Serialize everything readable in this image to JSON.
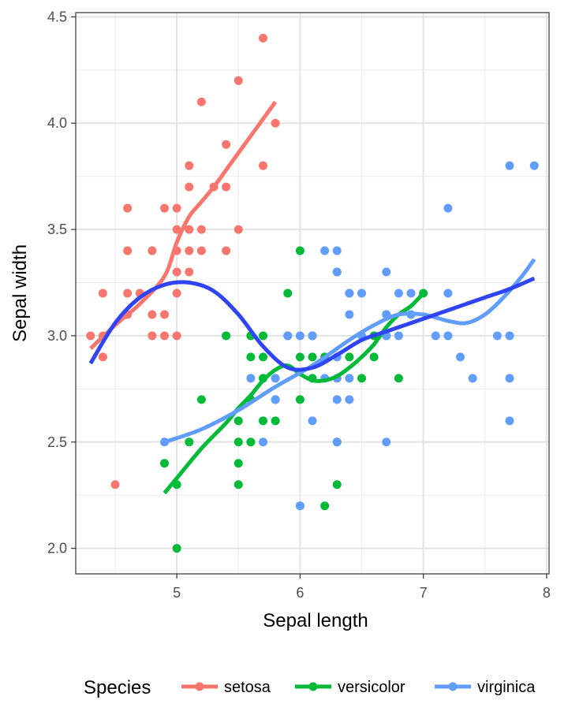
{
  "chart_data": {
    "type": "scatter",
    "title": "",
    "xlabel": "Sepal length",
    "ylabel": "Sepal width",
    "xlim": [
      4.18,
      8.02
    ],
    "ylim": [
      1.88,
      4.52
    ],
    "x_ticks": [
      5,
      6,
      7,
      8
    ],
    "y_ticks": [
      2.0,
      2.5,
      3.0,
      3.5,
      4.0,
      4.5
    ],
    "x_tick_labels": [
      "5",
      "6",
      "7",
      "8"
    ],
    "y_tick_labels": [
      "2.0",
      "2.5",
      "3.0",
      "3.5",
      "4.0",
      "4.5"
    ],
    "grid": true,
    "legend": {
      "title": "Species",
      "position": "bottom"
    },
    "series": [
      {
        "name": "setosa",
        "color": "#F8766D",
        "points": [
          [
            4.3,
            3.0
          ],
          [
            4.4,
            3.2
          ],
          [
            4.4,
            3.0
          ],
          [
            4.4,
            2.9
          ],
          [
            4.5,
            2.3
          ],
          [
            4.6,
            3.6
          ],
          [
            4.6,
            3.4
          ],
          [
            4.6,
            3.2
          ],
          [
            4.6,
            3.1
          ],
          [
            4.7,
            3.2
          ],
          [
            4.8,
            3.4
          ],
          [
            4.8,
            3.1
          ],
          [
            4.8,
            3.0
          ],
          [
            4.9,
            3.6
          ],
          [
            4.9,
            3.1
          ],
          [
            4.9,
            3.0
          ],
          [
            5.0,
            3.6
          ],
          [
            5.0,
            3.5
          ],
          [
            5.0,
            3.4
          ],
          [
            5.0,
            3.3
          ],
          [
            5.0,
            3.2
          ],
          [
            5.0,
            3.0
          ],
          [
            5.1,
            3.8
          ],
          [
            5.1,
            3.7
          ],
          [
            5.1,
            3.5
          ],
          [
            5.1,
            3.4
          ],
          [
            5.1,
            3.3
          ],
          [
            5.2,
            4.1
          ],
          [
            5.2,
            3.5
          ],
          [
            5.2,
            3.4
          ],
          [
            5.3,
            3.7
          ],
          [
            5.4,
            3.9
          ],
          [
            5.4,
            3.7
          ],
          [
            5.4,
            3.4
          ],
          [
            5.5,
            4.2
          ],
          [
            5.5,
            3.5
          ],
          [
            5.7,
            4.4
          ],
          [
            5.7,
            3.8
          ],
          [
            5.8,
            4.0
          ]
        ],
        "smooth": [
          [
            4.3,
            2.94
          ],
          [
            4.5,
            3.05
          ],
          [
            4.7,
            3.15
          ],
          [
            4.9,
            3.28
          ],
          [
            5.0,
            3.44
          ],
          [
            5.1,
            3.56
          ],
          [
            5.2,
            3.63
          ],
          [
            5.3,
            3.7
          ],
          [
            5.4,
            3.78
          ],
          [
            5.5,
            3.86
          ],
          [
            5.6,
            3.94
          ],
          [
            5.7,
            4.02
          ],
          [
            5.8,
            4.1
          ]
        ]
      },
      {
        "name": "versicolor",
        "color": "#00BA38",
        "points": [
          [
            4.9,
            2.4
          ],
          [
            5.0,
            2.3
          ],
          [
            5.0,
            2.0
          ],
          [
            5.1,
            2.5
          ],
          [
            5.2,
            2.7
          ],
          [
            5.4,
            3.0
          ],
          [
            5.5,
            2.6
          ],
          [
            5.5,
            2.5
          ],
          [
            5.5,
            2.4
          ],
          [
            5.5,
            2.3
          ],
          [
            5.6,
            3.0
          ],
          [
            5.6,
            2.9
          ],
          [
            5.6,
            2.7
          ],
          [
            5.6,
            2.5
          ],
          [
            5.7,
            3.0
          ],
          [
            5.7,
            2.9
          ],
          [
            5.7,
            2.8
          ],
          [
            5.7,
            2.6
          ],
          [
            5.8,
            2.7
          ],
          [
            5.8,
            2.6
          ],
          [
            5.9,
            3.2
          ],
          [
            5.9,
            3.0
          ],
          [
            6.0,
            3.4
          ],
          [
            6.0,
            2.9
          ],
          [
            6.0,
            2.7
          ],
          [
            6.0,
            2.2
          ],
          [
            6.1,
            3.0
          ],
          [
            6.1,
            2.9
          ],
          [
            6.1,
            2.8
          ],
          [
            6.2,
            2.9
          ],
          [
            6.2,
            2.2
          ],
          [
            6.3,
            2.5
          ],
          [
            6.3,
            2.3
          ],
          [
            6.3,
            3.3
          ],
          [
            6.4,
            3.2
          ],
          [
            6.4,
            2.9
          ],
          [
            6.5,
            2.8
          ],
          [
            6.6,
            3.0
          ],
          [
            6.6,
            2.9
          ],
          [
            6.7,
            3.1
          ],
          [
            6.7,
            3.0
          ],
          [
            6.8,
            2.8
          ],
          [
            6.9,
            3.1
          ],
          [
            7.0,
            3.2
          ]
        ],
        "smooth": [
          [
            4.9,
            2.26
          ],
          [
            5.0,
            2.33
          ],
          [
            5.2,
            2.47
          ],
          [
            5.4,
            2.59
          ],
          [
            5.5,
            2.66
          ],
          [
            5.6,
            2.72
          ],
          [
            5.7,
            2.79
          ],
          [
            5.8,
            2.84
          ],
          [
            5.9,
            2.86
          ],
          [
            6.0,
            2.82
          ],
          [
            6.1,
            2.79
          ],
          [
            6.2,
            2.79
          ],
          [
            6.3,
            2.81
          ],
          [
            6.4,
            2.85
          ],
          [
            6.5,
            2.9
          ],
          [
            6.6,
            2.96
          ],
          [
            6.7,
            3.04
          ],
          [
            6.8,
            3.1
          ],
          [
            6.9,
            3.14
          ],
          [
            7.0,
            3.2
          ]
        ]
      },
      {
        "name": "virginica",
        "color": "#619CFF",
        "points": [
          [
            4.9,
            2.5
          ],
          [
            5.6,
            2.8
          ],
          [
            5.7,
            2.5
          ],
          [
            5.8,
            2.8
          ],
          [
            5.8,
            2.7
          ],
          [
            5.9,
            3.0
          ],
          [
            6.0,
            3.0
          ],
          [
            6.0,
            2.2
          ],
          [
            6.1,
            3.0
          ],
          [
            6.1,
            2.6
          ],
          [
            6.2,
            3.4
          ],
          [
            6.2,
            2.8
          ],
          [
            6.3,
            3.4
          ],
          [
            6.3,
            3.3
          ],
          [
            6.3,
            2.9
          ],
          [
            6.3,
            2.8
          ],
          [
            6.3,
            2.7
          ],
          [
            6.3,
            2.5
          ],
          [
            6.4,
            3.2
          ],
          [
            6.4,
            3.1
          ],
          [
            6.4,
            2.8
          ],
          [
            6.4,
            2.7
          ],
          [
            6.5,
            3.2
          ],
          [
            6.5,
            3.0
          ],
          [
            6.7,
            3.3
          ],
          [
            6.7,
            3.1
          ],
          [
            6.7,
            3.0
          ],
          [
            6.7,
            2.5
          ],
          [
            6.8,
            3.2
          ],
          [
            6.8,
            3.0
          ],
          [
            6.9,
            3.2
          ],
          [
            6.9,
            3.1
          ],
          [
            7.1,
            3.0
          ],
          [
            7.2,
            3.6
          ],
          [
            7.2,
            3.2
          ],
          [
            7.2,
            3.0
          ],
          [
            7.3,
            2.9
          ],
          [
            7.4,
            2.8
          ],
          [
            7.6,
            3.0
          ],
          [
            7.7,
            3.8
          ],
          [
            7.7,
            3.0
          ],
          [
            7.7,
            2.8
          ],
          [
            7.7,
            2.6
          ],
          [
            7.9,
            3.8
          ]
        ],
        "smooth": [
          [
            4.9,
            2.5
          ],
          [
            5.2,
            2.56
          ],
          [
            5.5,
            2.65
          ],
          [
            5.8,
            2.76
          ],
          [
            6.1,
            2.86
          ],
          [
            6.4,
            2.98
          ],
          [
            6.6,
            3.05
          ],
          [
            6.8,
            3.1
          ],
          [
            7.0,
            3.1
          ],
          [
            7.2,
            3.07
          ],
          [
            7.35,
            3.06
          ],
          [
            7.5,
            3.1
          ],
          [
            7.65,
            3.18
          ],
          [
            7.8,
            3.28
          ],
          [
            7.9,
            3.36
          ]
        ]
      }
    ],
    "overall_smooth": {
      "color": "#2E44F5",
      "points": [
        [
          4.3,
          2.87
        ],
        [
          4.5,
          3.06
        ],
        [
          4.7,
          3.18
        ],
        [
          4.9,
          3.24
        ],
        [
          5.1,
          3.25
        ],
        [
          5.3,
          3.21
        ],
        [
          5.5,
          3.1
        ],
        [
          5.7,
          2.95
        ],
        [
          5.9,
          2.85
        ],
        [
          6.1,
          2.85
        ],
        [
          6.3,
          2.91
        ],
        [
          6.5,
          2.98
        ],
        [
          6.7,
          3.02
        ],
        [
          6.9,
          3.06
        ],
        [
          7.1,
          3.1
        ],
        [
          7.3,
          3.14
        ],
        [
          7.5,
          3.18
        ],
        [
          7.7,
          3.22
        ],
        [
          7.9,
          3.27
        ]
      ]
    }
  }
}
